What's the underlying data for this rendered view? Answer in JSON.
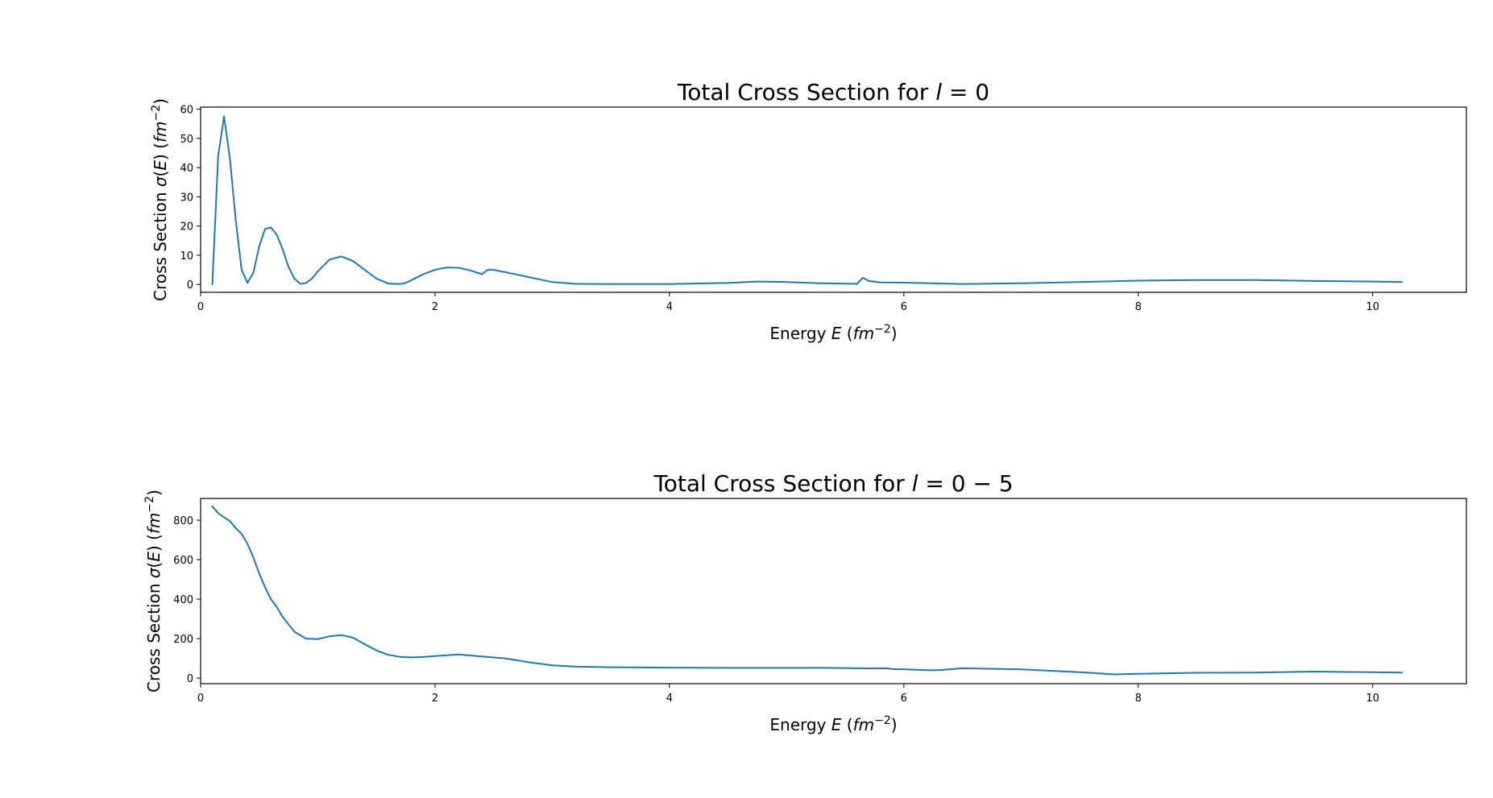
{
  "chart_data": [
    {
      "type": "line",
      "title": "Total Cross Section for l = 0",
      "title_parts": [
        "Total Cross Section for ",
        "l",
        " = 0"
      ],
      "xlabel": "Energy E (fm⁻²)",
      "xlabel_parts": [
        "Energy ",
        "E",
        " (",
        "fm",
        "⁻²",
        ")"
      ],
      "ylabel": "Cross Section σ(E) (fm⁻²)",
      "ylabel_parts": [
        "Cross Section ",
        "σ",
        "(",
        "E",
        ") (",
        "fm",
        "⁻²",
        ")"
      ],
      "xlim": [
        0,
        10.8
      ],
      "ylim": [
        -2.7,
        60.7
      ],
      "xticks": [
        0,
        2,
        4,
        6,
        8,
        10
      ],
      "yticks": [
        0,
        10,
        20,
        30,
        40,
        50,
        60
      ],
      "grid": false,
      "color": "#1f77b4",
      "series": [
        {
          "x": [
            0.1,
            0.15,
            0.2,
            0.25,
            0.3,
            0.35,
            0.4,
            0.45,
            0.5,
            0.55,
            0.6,
            0.65,
            0.7,
            0.75,
            0.8,
            0.85,
            0.9,
            0.95,
            1.0,
            1.1,
            1.2,
            1.3,
            1.4,
            1.5,
            1.6,
            1.7,
            1.75,
            1.8,
            1.9,
            2.0,
            2.1,
            2.2,
            2.3,
            2.4,
            2.45,
            2.5,
            2.6,
            2.8,
            3.0,
            3.2,
            3.5,
            4.0,
            4.5,
            4.75,
            5.0,
            5.3,
            5.6,
            5.65,
            5.7,
            5.8,
            6.0,
            6.5,
            7.0,
            7.5,
            8.0,
            8.5,
            9.0,
            9.5,
            10.0,
            10.25
          ],
          "y": [
            0,
            44,
            57.5,
            43,
            22,
            5,
            0.5,
            4,
            13,
            19,
            19.5,
            17,
            12,
            6,
            2,
            0.2,
            0.5,
            2,
            4.5,
            8.5,
            9.6,
            8,
            5,
            2,
            0.3,
            0.1,
            0.5,
            1.5,
            3.5,
            5,
            5.8,
            5.7,
            4.8,
            3.5,
            5,
            5,
            4.2,
            2.5,
            0.8,
            0.2,
            0.1,
            0.1,
            0.5,
            1,
            0.8,
            0.4,
            0.2,
            2.3,
            1.2,
            0.7,
            0.6,
            0.1,
            0.4,
            0.8,
            1.3,
            1.5,
            1.5,
            1.2,
            1.0,
            0.8
          ]
        }
      ]
    },
    {
      "type": "line",
      "title": "Total Cross Section for l = 0 − 5",
      "title_parts": [
        "Total Cross Section for ",
        "l",
        " = 0 − 5"
      ],
      "xlabel": "Energy E (fm⁻²)",
      "xlabel_parts": [
        "Energy ",
        "E",
        " (",
        "fm",
        "⁻²",
        ")"
      ],
      "ylabel": "Cross Section σ(E) (fm⁻²)",
      "ylabel_parts": [
        "Cross Section ",
        "σ",
        "(",
        "E",
        ") (",
        "fm",
        "⁻²",
        ")"
      ],
      "xlim": [
        0,
        10.8
      ],
      "ylim": [
        -28,
        910
      ],
      "xticks": [
        0,
        2,
        4,
        6,
        8,
        10
      ],
      "yticks": [
        0,
        200,
        400,
        600,
        800
      ],
      "grid": false,
      "color": "#1f77b4",
      "series": [
        {
          "x": [
            0.1,
            0.15,
            0.2,
            0.25,
            0.3,
            0.35,
            0.4,
            0.45,
            0.5,
            0.55,
            0.6,
            0.65,
            0.7,
            0.8,
            0.9,
            1.0,
            1.1,
            1.2,
            1.3,
            1.4,
            1.5,
            1.6,
            1.7,
            1.8,
            1.9,
            2.0,
            2.2,
            2.4,
            2.45,
            2.6,
            2.8,
            3.0,
            3.2,
            3.5,
            4.0,
            4.5,
            5.0,
            5.3,
            5.6,
            5.7,
            5.85,
            5.9,
            6.0,
            6.2,
            6.3,
            6.5,
            7.0,
            7.5,
            7.8,
            8.0,
            8.5,
            9.0,
            9.5,
            10.0,
            10.25
          ],
          "y": [
            870,
            835,
            815,
            795,
            760,
            730,
            680,
            610,
            530,
            460,
            400,
            360,
            310,
            235,
            200,
            198,
            212,
            218,
            205,
            172,
            140,
            118,
            108,
            105,
            107,
            112,
            120,
            110,
            107,
            100,
            80,
            65,
            58,
            55,
            53,
            52,
            52,
            52,
            50,
            49,
            50,
            46,
            45,
            40,
            40,
            50,
            44,
            30,
            19,
            22,
            27,
            28,
            33,
            30,
            28
          ]
        }
      ]
    }
  ]
}
